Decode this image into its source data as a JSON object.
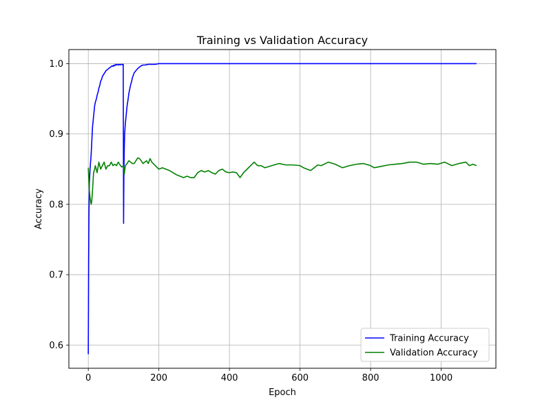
{
  "chart_data": {
    "type": "line",
    "title": "Training vs Validation Accuracy",
    "xlabel": "Epoch",
    "ylabel": "Accuracy",
    "xlim": [
      -55,
      1155
    ],
    "ylim": [
      0.567,
      1.02
    ],
    "xticks": [
      0,
      200,
      400,
      600,
      800,
      1000
    ],
    "yticks": [
      0.6,
      0.7,
      0.8,
      0.9,
      1.0
    ],
    "ytick_labels": [
      "0.6",
      "0.7",
      "0.8",
      "0.9",
      "1.0"
    ],
    "grid": true,
    "legend_position": "bottom-right",
    "series": [
      {
        "name": "Training Accuracy",
        "color": "#0000ff",
        "x": [
          0,
          1,
          2,
          3,
          5,
          8,
          10,
          12,
          15,
          18,
          20,
          23,
          25,
          28,
          30,
          33,
          35,
          38,
          40,
          43,
          45,
          48,
          50,
          53,
          55,
          58,
          60,
          63,
          65,
          68,
          70,
          73,
          75,
          78,
          80,
          83,
          85,
          88,
          90,
          93,
          95,
          98,
          99,
          100,
          101,
          102,
          103,
          105,
          108,
          110,
          113,
          115,
          118,
          120,
          123,
          125,
          128,
          130,
          135,
          140,
          145,
          150,
          155,
          160,
          170,
          180,
          190,
          200,
          220,
          250,
          300,
          400,
          500,
          600,
          700,
          800,
          900,
          1000,
          1100
        ],
        "y": [
          0.587,
          0.72,
          0.79,
          0.83,
          0.85,
          0.87,
          0.89,
          0.91,
          0.925,
          0.94,
          0.945,
          0.95,
          0.955,
          0.96,
          0.965,
          0.97,
          0.975,
          0.978,
          0.982,
          0.984,
          0.986,
          0.988,
          0.99,
          0.991,
          0.992,
          0.993,
          0.994,
          0.995,
          0.996,
          0.997,
          0.996,
          0.998,
          0.997,
          0.999,
          0.998,
          0.999,
          0.998,
          0.999,
          0.998,
          0.999,
          0.999,
          0.998,
          0.999,
          0.773,
          0.85,
          0.88,
          0.9,
          0.915,
          0.93,
          0.94,
          0.95,
          0.958,
          0.965,
          0.97,
          0.975,
          0.98,
          0.984,
          0.987,
          0.99,
          0.993,
          0.995,
          0.997,
          0.998,
          0.998,
          0.999,
          0.999,
          0.999,
          1.0,
          1.0,
          1.0,
          1.0,
          1.0,
          1.0,
          1.0,
          1.0,
          1.0,
          1.0,
          1.0,
          1.0
        ]
      },
      {
        "name": "Validation Accuracy",
        "color": "#008000",
        "x": [
          0,
          3,
          5,
          8,
          10,
          12,
          15,
          18,
          20,
          25,
          30,
          35,
          40,
          45,
          50,
          55,
          60,
          65,
          70,
          75,
          80,
          85,
          90,
          95,
          100,
          102,
          105,
          110,
          115,
          120,
          125,
          130,
          135,
          140,
          145,
          150,
          155,
          160,
          165,
          170,
          175,
          180,
          190,
          200,
          210,
          220,
          230,
          240,
          250,
          260,
          270,
          280,
          290,
          300,
          310,
          320,
          330,
          340,
          350,
          360,
          370,
          380,
          390,
          400,
          410,
          420,
          430,
          440,
          450,
          460,
          470,
          480,
          490,
          500,
          520,
          540,
          560,
          580,
          600,
          610,
          620,
          630,
          640,
          650,
          660,
          680,
          700,
          720,
          740,
          760,
          780,
          800,
          810,
          830,
          850,
          870,
          890,
          910,
          930,
          950,
          970,
          990,
          1010,
          1030,
          1050,
          1070,
          1080,
          1090,
          1100
        ],
        "y": [
          0.852,
          0.82,
          0.81,
          0.8,
          0.805,
          0.82,
          0.845,
          0.85,
          0.855,
          0.845,
          0.86,
          0.85,
          0.855,
          0.86,
          0.85,
          0.855,
          0.855,
          0.86,
          0.855,
          0.857,
          0.855,
          0.86,
          0.856,
          0.853,
          0.855,
          0.843,
          0.855,
          0.858,
          0.862,
          0.86,
          0.858,
          0.858,
          0.862,
          0.866,
          0.865,
          0.862,
          0.858,
          0.86,
          0.862,
          0.858,
          0.865,
          0.86,
          0.855,
          0.85,
          0.852,
          0.85,
          0.848,
          0.845,
          0.842,
          0.84,
          0.838,
          0.84,
          0.838,
          0.838,
          0.845,
          0.848,
          0.846,
          0.848,
          0.845,
          0.843,
          0.848,
          0.85,
          0.846,
          0.845,
          0.846,
          0.845,
          0.838,
          0.845,
          0.85,
          0.855,
          0.86,
          0.855,
          0.855,
          0.852,
          0.855,
          0.858,
          0.856,
          0.856,
          0.855,
          0.852,
          0.85,
          0.848,
          0.852,
          0.856,
          0.855,
          0.86,
          0.857,
          0.852,
          0.855,
          0.857,
          0.858,
          0.855,
          0.852,
          0.854,
          0.856,
          0.857,
          0.858,
          0.86,
          0.86,
          0.857,
          0.858,
          0.857,
          0.86,
          0.855,
          0.858,
          0.86,
          0.855,
          0.857,
          0.855
        ]
      }
    ]
  }
}
